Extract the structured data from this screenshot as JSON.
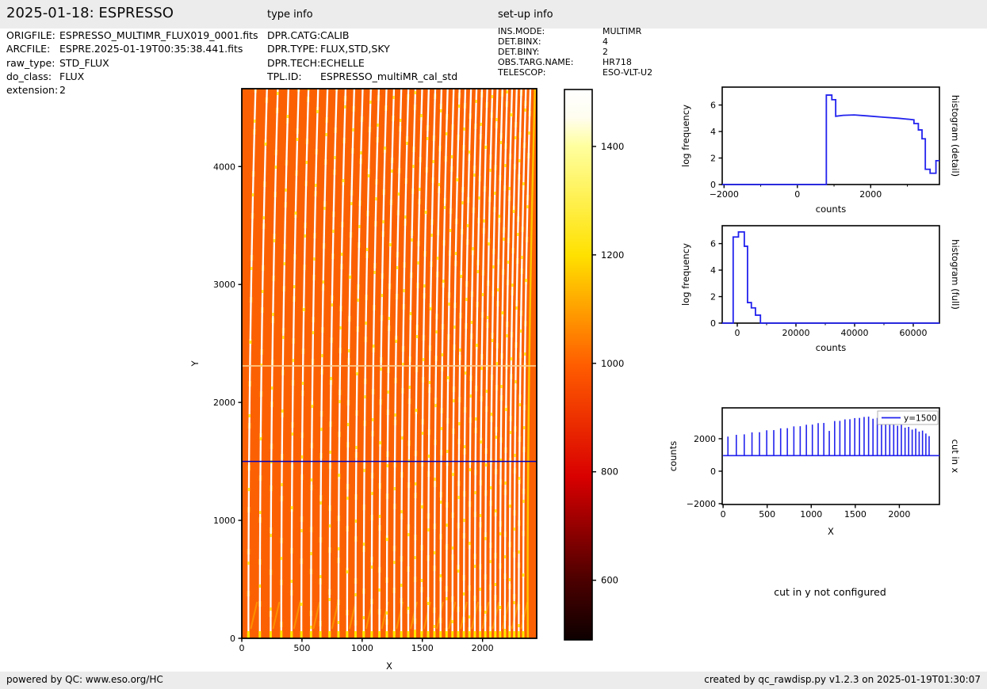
{
  "header": {
    "title": "2025-01-18: ESPRESSO",
    "type_info_label": "type info",
    "setup_info_label": "set-up info"
  },
  "file_info": {
    "rows": [
      {
        "label": "ORIGFILE:",
        "value": "ESPRESSO_MULTIMR_FLUX019_0001.fits"
      },
      {
        "label": "ARCFILE:",
        "value": "ESPRE.2025-01-19T00:35:38.441.fits"
      },
      {
        "label": "raw_type:",
        "value": "STD_FLUX"
      },
      {
        "label": "do_class:",
        "value": "FLUX"
      },
      {
        "label": "extension:",
        "value": "2"
      }
    ]
  },
  "type_info": {
    "rows": [
      {
        "label": "DPR.CATG:",
        "value": "CALIB"
      },
      {
        "label": "DPR.TYPE:",
        "value": "FLUX,STD,SKY"
      },
      {
        "label": "DPR.TECH:",
        "value": "ECHELLE"
      },
      {
        "label": "TPL.ID:",
        "value": "ESPRESSO_multiMR_cal_std"
      }
    ]
  },
  "setup_info": {
    "rows": [
      {
        "label": "INS.MODE:",
        "value": "MULTIMR"
      },
      {
        "label": "DET.BINX:",
        "value": "4"
      },
      {
        "label": "DET.BINY:",
        "value": "2"
      },
      {
        "label": "OBS.TARG.NAME:",
        "value": "HR718"
      },
      {
        "label": "TELESCOP:",
        "value": "ESO-VLT-U2"
      }
    ]
  },
  "cut_in_y_note": "cut in y not configured",
  "footer": {
    "left": "powered by QC: www.eso.org/HC",
    "right": "created by qc_rawdisp.py v1.2.3 on 2025-01-19T01:30:07"
  },
  "chart_data": [
    {
      "id": "main-image",
      "type": "heatmap",
      "xlabel": "X",
      "ylabel": "Y",
      "xlim": [
        0,
        2450
      ],
      "ylim": [
        0,
        4660
      ],
      "xticks": [
        0,
        500,
        1000,
        1500,
        2000
      ],
      "yticks": [
        0,
        1000,
        2000,
        3000,
        4000
      ],
      "background_value": 1000,
      "background_color": "#fb6103",
      "stripe_color": "#ffffff",
      "accent_color": "#ffd400",
      "spark_color": "#ffee00",
      "stripe_x": [
        55,
        150,
        240,
        328,
        413,
        495,
        575,
        653,
        729,
        803,
        875,
        945,
        1013,
        1079,
        1143,
        1205,
        1266,
        1325,
        1383,
        1439,
        1494,
        1548,
        1600,
        1651,
        1701,
        1750,
        1798,
        1845,
        1891,
        1936,
        1980,
        2023,
        2065,
        2106,
        2146,
        2186,
        2225,
        2263,
        2301,
        2338
      ],
      "detector_gap_y": 2310,
      "cut_line": {
        "y": 1500,
        "color": "#0000bb"
      },
      "order_region_end_x": 2350
    },
    {
      "id": "colorbar",
      "type": "colorbar",
      "colormap": "hot",
      "vmin": 490,
      "vmax": 1505,
      "ticks": [
        600,
        800,
        1000,
        1200,
        1400
      ],
      "stops": [
        {
          "o": 0.0,
          "c": "#ffffff"
        },
        {
          "o": 0.05,
          "c": "#fffdf0"
        },
        {
          "o": 0.103,
          "c": "#ffff9e"
        },
        {
          "o": 0.301,
          "c": "#ffe100"
        },
        {
          "o": 0.502,
          "c": "#ff5c00"
        },
        {
          "o": 0.704,
          "c": "#d90000"
        },
        {
          "o": 0.891,
          "c": "#4c0000"
        },
        {
          "o": 1.0,
          "c": "#0d0000"
        }
      ]
    },
    {
      "id": "hist-detail",
      "type": "line",
      "xlabel": "counts",
      "ylabel": "log frequency",
      "right_label": "histogram (detail)",
      "color": "#2222ee",
      "xlim": [
        -2050,
        3875
      ],
      "ylim": [
        0,
        7.35
      ],
      "xticks": [
        -2000,
        0,
        2000
      ],
      "xticks_minor": [
        -1000,
        1000,
        3000
      ],
      "yticks": [
        0,
        2,
        4,
        6
      ],
      "x": [
        -2050,
        790,
        790,
        940,
        940,
        1045,
        1045,
        1250,
        1550,
        1900,
        2350,
        2750,
        3050,
        3180,
        3180,
        3300,
        3300,
        3400,
        3400,
        3490,
        3490,
        3620,
        3620,
        3780,
        3780,
        3875
      ],
      "y": [
        0,
        0,
        6.75,
        6.75,
        6.4,
        6.4,
        5.15,
        5.22,
        5.25,
        5.18,
        5.08,
        5.0,
        4.92,
        4.88,
        4.6,
        4.6,
        4.12,
        4.12,
        3.45,
        3.45,
        1.15,
        1.15,
        0.85,
        0.85,
        1.8,
        1.8
      ]
    },
    {
      "id": "hist-full",
      "type": "line",
      "xlabel": "counts",
      "ylabel": "log frequency",
      "right_label": "histogram (full)",
      "color": "#2222ee",
      "xlim": [
        -5135,
        68920
      ],
      "ylim": [
        0,
        7.35
      ],
      "xticks": [
        0,
        20000,
        40000,
        60000
      ],
      "xticks_minor": [
        10000,
        30000,
        50000
      ],
      "yticks": [
        0,
        2,
        4,
        6
      ],
      "x": [
        -5135,
        -1400,
        -1400,
        400,
        400,
        2400,
        2400,
        3500,
        3500,
        4800,
        4800,
        6200,
        6200,
        7900,
        7900,
        68920
      ],
      "y": [
        0,
        0,
        6.5,
        6.5,
        6.88,
        6.88,
        5.8,
        5.8,
        1.55,
        1.55,
        1.15,
        1.15,
        0.6,
        0.6,
        0,
        0
      ]
    },
    {
      "id": "cut-x",
      "type": "spikes",
      "xlabel": "X",
      "ylabel": "counts",
      "right_label": "cut in x",
      "legend": "y=1500",
      "color": "#2222ee",
      "xlim": [
        -10,
        2455
      ],
      "ylim": [
        -2050,
        3900
      ],
      "xticks": [
        0,
        500,
        1000,
        1500,
        2000
      ],
      "yticks": [
        -2000,
        0,
        2000
      ],
      "baseline": 960,
      "spike_x": [
        55,
        150,
        240,
        328,
        413,
        495,
        575,
        653,
        729,
        803,
        875,
        945,
        1013,
        1079,
        1143,
        1205,
        1266,
        1325,
        1383,
        1439,
        1494,
        1548,
        1600,
        1651,
        1701,
        1750,
        1798,
        1845,
        1891,
        1936,
        1980,
        2023,
        2065,
        2106,
        2146,
        2186,
        2225,
        2263,
        2301,
        2338
      ],
      "spike_peak": [
        2130,
        2240,
        2270,
        2390,
        2400,
        2520,
        2530,
        2640,
        2650,
        2760,
        2770,
        2860,
        2870,
        2960,
        2970,
        2480,
        3090,
        3100,
        3190,
        3200,
        3270,
        3280,
        3340,
        3360,
        3230,
        3280,
        3080,
        3140,
        2940,
        3000,
        2800,
        2860,
        2680,
        2730,
        2560,
        2620,
        2440,
        2500,
        2320,
        2160
      ]
    }
  ]
}
